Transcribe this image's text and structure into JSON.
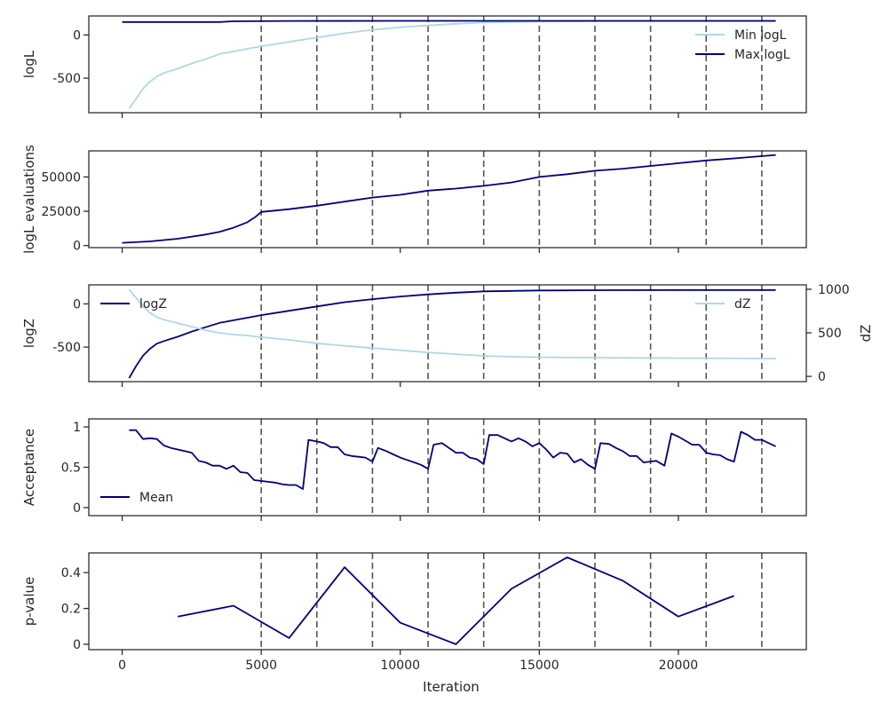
{
  "chart_data": [
    {
      "type": "line",
      "ylabel": "logL",
      "xlim": [
        -1200,
        24600
      ],
      "ylim": [
        -900,
        220
      ],
      "yticks": [
        0,
        -500
      ],
      "xticks": [
        0,
        5000,
        10000,
        15000,
        20000
      ],
      "show_xtick_labels": false,
      "vlines": [
        5000,
        7000,
        9000,
        11000,
        13000,
        15000,
        17000,
        19000,
        21000,
        23000
      ],
      "legend": "top-right",
      "series": [
        {
          "name": "Min logL",
          "color": "#add8e6",
          "points": [
            [
              250,
              -850
            ],
            [
              500,
              -740
            ],
            [
              750,
              -620
            ],
            [
              1000,
              -540
            ],
            [
              1250,
              -480
            ],
            [
              1500,
              -440
            ],
            [
              2000,
              -390
            ],
            [
              2500,
              -330
            ],
            [
              3000,
              -280
            ],
            [
              3500,
              -220
            ],
            [
              4000,
              -190
            ],
            [
              4500,
              -160
            ],
            [
              5000,
              -130
            ],
            [
              6000,
              -80
            ],
            [
              7000,
              -30
            ],
            [
              8000,
              20
            ],
            [
              9000,
              60
            ],
            [
              10000,
              90
            ],
            [
              11000,
              110
            ],
            [
              12000,
              130
            ],
            [
              13000,
              145
            ],
            [
              14000,
              150
            ],
            [
              15000,
              155
            ],
            [
              17000,
              160
            ],
            [
              20000,
              160
            ],
            [
              23500,
              160
            ]
          ]
        },
        {
          "name": "Max logL",
          "color": "#000080",
          "points": [
            [
              0,
              150
            ],
            [
              3500,
              150
            ],
            [
              4000,
              158
            ],
            [
              6000,
              162
            ],
            [
              10000,
              163
            ],
            [
              15000,
              164
            ],
            [
              23500,
              164
            ]
          ]
        }
      ]
    },
    {
      "type": "line",
      "ylabel": "logL evaluations",
      "xlim": [
        -1200,
        24600
      ],
      "ylim": [
        -1500,
        69000
      ],
      "yticks": [
        0,
        25000,
        50000
      ],
      "xticks": [
        0,
        5000,
        10000,
        15000,
        20000
      ],
      "show_xtick_labels": false,
      "vlines": [
        5000,
        7000,
        9000,
        11000,
        13000,
        15000,
        17000,
        19000,
        21000,
        23000
      ],
      "series": [
        {
          "name": "",
          "color": "#000080",
          "points": [
            [
              0,
              2000
            ],
            [
              1000,
              3000
            ],
            [
              2000,
              5000
            ],
            [
              3000,
              8000
            ],
            [
              3500,
              10000
            ],
            [
              4000,
              13000
            ],
            [
              4500,
              17000
            ],
            [
              4800,
              21000
            ],
            [
              5000,
              24500
            ],
            [
              6000,
              26500
            ],
            [
              7000,
              29000
            ],
            [
              8000,
              32000
            ],
            [
              9000,
              35000
            ],
            [
              10000,
              37000
            ],
            [
              11000,
              40000
            ],
            [
              12000,
              41500
            ],
            [
              13000,
              43500
            ],
            [
              14000,
              46000
            ],
            [
              15000,
              50000
            ],
            [
              16000,
              52000
            ],
            [
              17000,
              54500
            ],
            [
              18000,
              56000
            ],
            [
              19000,
              58000
            ],
            [
              20000,
              60000
            ],
            [
              21000,
              62000
            ],
            [
              22000,
              63500
            ],
            [
              23500,
              66000
            ]
          ]
        }
      ]
    },
    {
      "type": "line",
      "ylabel": "logZ",
      "ylabel_right": "dZ",
      "xlim": [
        -1200,
        24600
      ],
      "ylim": [
        -900,
        220
      ],
      "yticks": [
        0,
        -500
      ],
      "ylim_right": [
        -60,
        1050
      ],
      "yticks_right": [
        0,
        500,
        1000
      ],
      "xticks": [
        0,
        5000,
        10000,
        15000,
        20000
      ],
      "show_xtick_labels": false,
      "vlines": [
        5000,
        7000,
        9000,
        11000,
        13000,
        15000,
        17000,
        19000,
        21000,
        23000
      ],
      "series": [
        {
          "name": "logZ",
          "axis": "left",
          "legend": "top-left",
          "color": "#000080",
          "points": [
            [
              250,
              -860
            ],
            [
              500,
              -720
            ],
            [
              750,
              -600
            ],
            [
              1000,
              -520
            ],
            [
              1250,
              -460
            ],
            [
              1500,
              -430
            ],
            [
              2000,
              -380
            ],
            [
              2500,
              -320
            ],
            [
              3000,
              -270
            ],
            [
              3500,
              -220
            ],
            [
              4000,
              -190
            ],
            [
              5000,
              -130
            ],
            [
              6000,
              -80
            ],
            [
              7000,
              -30
            ],
            [
              8000,
              20
            ],
            [
              9000,
              55
            ],
            [
              10000,
              85
            ],
            [
              11000,
              110
            ],
            [
              12000,
              130
            ],
            [
              13000,
              145
            ],
            [
              14000,
              150
            ],
            [
              15000,
              155
            ],
            [
              17000,
              158
            ],
            [
              20000,
              160
            ],
            [
              23500,
              160
            ]
          ]
        },
        {
          "name": "dZ",
          "axis": "right",
          "legend": "top-right",
          "color": "#add8e6",
          "points": [
            [
              250,
              1000
            ],
            [
              500,
              900
            ],
            [
              750,
              800
            ],
            [
              1000,
              730
            ],
            [
              1250,
              680
            ],
            [
              1500,
              650
            ],
            [
              2000,
              610
            ],
            [
              2500,
              570
            ],
            [
              3000,
              530
            ],
            [
              3500,
              500
            ],
            [
              4000,
              480
            ],
            [
              4500,
              470
            ],
            [
              5000,
              450
            ],
            [
              6000,
              420
            ],
            [
              7000,
              380
            ],
            [
              8000,
              350
            ],
            [
              9000,
              325
            ],
            [
              10000,
              300
            ],
            [
              11000,
              275
            ],
            [
              12000,
              255
            ],
            [
              13000,
              235
            ],
            [
              14000,
              225
            ],
            [
              15000,
              220
            ],
            [
              17000,
              215
            ],
            [
              20000,
              210
            ],
            [
              23500,
              205
            ]
          ]
        }
      ]
    },
    {
      "type": "line",
      "ylabel": "Acceptance",
      "xlim": [
        -1200,
        24600
      ],
      "ylim": [
        -0.1,
        1.1
      ],
      "yticks": [
        0.0,
        0.5,
        1.0
      ],
      "xticks": [
        0,
        5000,
        10000,
        15000,
        20000
      ],
      "show_xtick_labels": false,
      "vlines": [
        5000,
        7000,
        9000,
        11000,
        13000,
        15000,
        17000,
        19000,
        21000,
        23000
      ],
      "legend": "bottom-left",
      "series": [
        {
          "name": "Mean",
          "color": "#000080",
          "points": [
            [
              250,
              0.96
            ],
            [
              500,
              0.96
            ],
            [
              750,
              0.85
            ],
            [
              1000,
              0.86
            ],
            [
              1250,
              0.85
            ],
            [
              1500,
              0.77
            ],
            [
              1750,
              0.74
            ],
            [
              2000,
              0.72
            ],
            [
              2250,
              0.7
            ],
            [
              2500,
              0.68
            ],
            [
              2750,
              0.58
            ],
            [
              3000,
              0.56
            ],
            [
              3250,
              0.52
            ],
            [
              3500,
              0.52
            ],
            [
              3750,
              0.48
            ],
            [
              4000,
              0.52
            ],
            [
              4250,
              0.44
            ],
            [
              4500,
              0.43
            ],
            [
              4750,
              0.34
            ],
            [
              5000,
              0.33
            ],
            [
              5250,
              0.32
            ],
            [
              5500,
              0.31
            ],
            [
              5750,
              0.29
            ],
            [
              6000,
              0.28
            ],
            [
              6250,
              0.28
            ],
            [
              6500,
              0.23
            ],
            [
              6700,
              0.84
            ],
            [
              7000,
              0.82
            ],
            [
              7250,
              0.8
            ],
            [
              7500,
              0.75
            ],
            [
              7750,
              0.75
            ],
            [
              8000,
              0.66
            ],
            [
              8250,
              0.64
            ],
            [
              8500,
              0.63
            ],
            [
              8750,
              0.62
            ],
            [
              9000,
              0.57
            ],
            [
              9200,
              0.74
            ],
            [
              9500,
              0.7
            ],
            [
              9750,
              0.66
            ],
            [
              10000,
              0.62
            ],
            [
              10250,
              0.59
            ],
            [
              10500,
              0.56
            ],
            [
              10750,
              0.53
            ],
            [
              11000,
              0.48
            ],
            [
              11200,
              0.78
            ],
            [
              11500,
              0.8
            ],
            [
              11750,
              0.74
            ],
            [
              12000,
              0.68
            ],
            [
              12250,
              0.68
            ],
            [
              12500,
              0.62
            ],
            [
              12750,
              0.6
            ],
            [
              13000,
              0.54
            ],
            [
              13200,
              0.9
            ],
            [
              13500,
              0.9
            ],
            [
              13750,
              0.86
            ],
            [
              14000,
              0.82
            ],
            [
              14250,
              0.86
            ],
            [
              14500,
              0.82
            ],
            [
              14750,
              0.76
            ],
            [
              15000,
              0.8
            ],
            [
              15250,
              0.72
            ],
            [
              15500,
              0.62
            ],
            [
              15750,
              0.68
            ],
            [
              16000,
              0.67
            ],
            [
              16250,
              0.56
            ],
            [
              16500,
              0.6
            ],
            [
              16750,
              0.53
            ],
            [
              17000,
              0.48
            ],
            [
              17200,
              0.8
            ],
            [
              17500,
              0.79
            ],
            [
              17750,
              0.74
            ],
            [
              18000,
              0.7
            ],
            [
              18250,
              0.64
            ],
            [
              18500,
              0.64
            ],
            [
              18750,
              0.56
            ],
            [
              19000,
              0.57
            ],
            [
              19200,
              0.58
            ],
            [
              19500,
              0.52
            ],
            [
              19750,
              0.92
            ],
            [
              20000,
              0.88
            ],
            [
              20250,
              0.83
            ],
            [
              20500,
              0.78
            ],
            [
              20750,
              0.78
            ],
            [
              21000,
              0.68
            ],
            [
              21250,
              0.66
            ],
            [
              21500,
              0.65
            ],
            [
              21750,
              0.6
            ],
            [
              22000,
              0.57
            ],
            [
              22250,
              0.94
            ],
            [
              22500,
              0.9
            ],
            [
              22750,
              0.84
            ],
            [
              23000,
              0.84
            ],
            [
              23250,
              0.8
            ],
            [
              23500,
              0.76
            ]
          ]
        }
      ]
    },
    {
      "type": "line",
      "ylabel": "p-value",
      "xlabel": "Iteration",
      "xlim": [
        -1200,
        24600
      ],
      "ylim": [
        -0.03,
        0.51
      ],
      "yticks": [
        0.0,
        0.2,
        0.4
      ],
      "xticks": [
        0,
        5000,
        10000,
        15000,
        20000
      ],
      "show_xtick_labels": true,
      "vlines": [
        5000,
        7000,
        9000,
        11000,
        13000,
        15000,
        17000,
        19000,
        21000,
        23000
      ],
      "series": [
        {
          "name": "",
          "color": "#000080",
          "points": [
            [
              2000,
              0.155
            ],
            [
              4000,
              0.215
            ],
            [
              6000,
              0.035
            ],
            [
              8000,
              0.43
            ],
            [
              10000,
              0.12
            ],
            [
              12000,
              0.0
            ],
            [
              14000,
              0.31
            ],
            [
              16000,
              0.485
            ],
            [
              18000,
              0.355
            ],
            [
              20000,
              0.155
            ],
            [
              22000,
              0.27
            ]
          ]
        }
      ]
    }
  ]
}
